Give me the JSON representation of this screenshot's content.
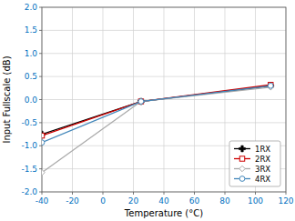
{
  "chart_data": {
    "type": "line",
    "x_label": "Temperature (°C)",
    "y_label": "Input Fullscale (dB)",
    "x": [
      -40,
      25,
      110
    ],
    "series": [
      {
        "name": "1RX",
        "color": "#000000",
        "marker": "plus",
        "values": [
          -0.75,
          -0.04,
          0.3
        ]
      },
      {
        "name": "2RX",
        "color": "#cc0000",
        "marker": "square",
        "values": [
          -0.78,
          -0.04,
          0.32
        ]
      },
      {
        "name": "3RX",
        "color": "#aaaaaa",
        "marker": "diamond",
        "values": [
          -1.58,
          -0.04,
          0.27
        ]
      },
      {
        "name": "4RX",
        "color": "#4488bb",
        "marker": "circle",
        "values": [
          -0.93,
          -0.04,
          0.3
        ]
      }
    ],
    "xlim": [
      -40,
      120
    ],
    "ylim": [
      -2,
      2
    ],
    "xticks": [
      -40,
      -20,
      0,
      20,
      40,
      60,
      80,
      100,
      120
    ],
    "yticks": [
      {
        "value": -2,
        "label": "-2.0"
      },
      {
        "value": -1.5,
        "label": "-1.5"
      },
      {
        "value": -1,
        "label": "-1.0"
      },
      {
        "value": -0.5,
        "label": "-0.5"
      },
      {
        "value": 0,
        "label": "0.0"
      },
      {
        "value": 0.5,
        "label": "0.5"
      },
      {
        "value": 1,
        "label": "1.0"
      },
      {
        "value": 1.5,
        "label": "1.5"
      },
      {
        "value": 2,
        "label": "2.0"
      }
    ],
    "grid": true,
    "legend": "lower-right"
  }
}
